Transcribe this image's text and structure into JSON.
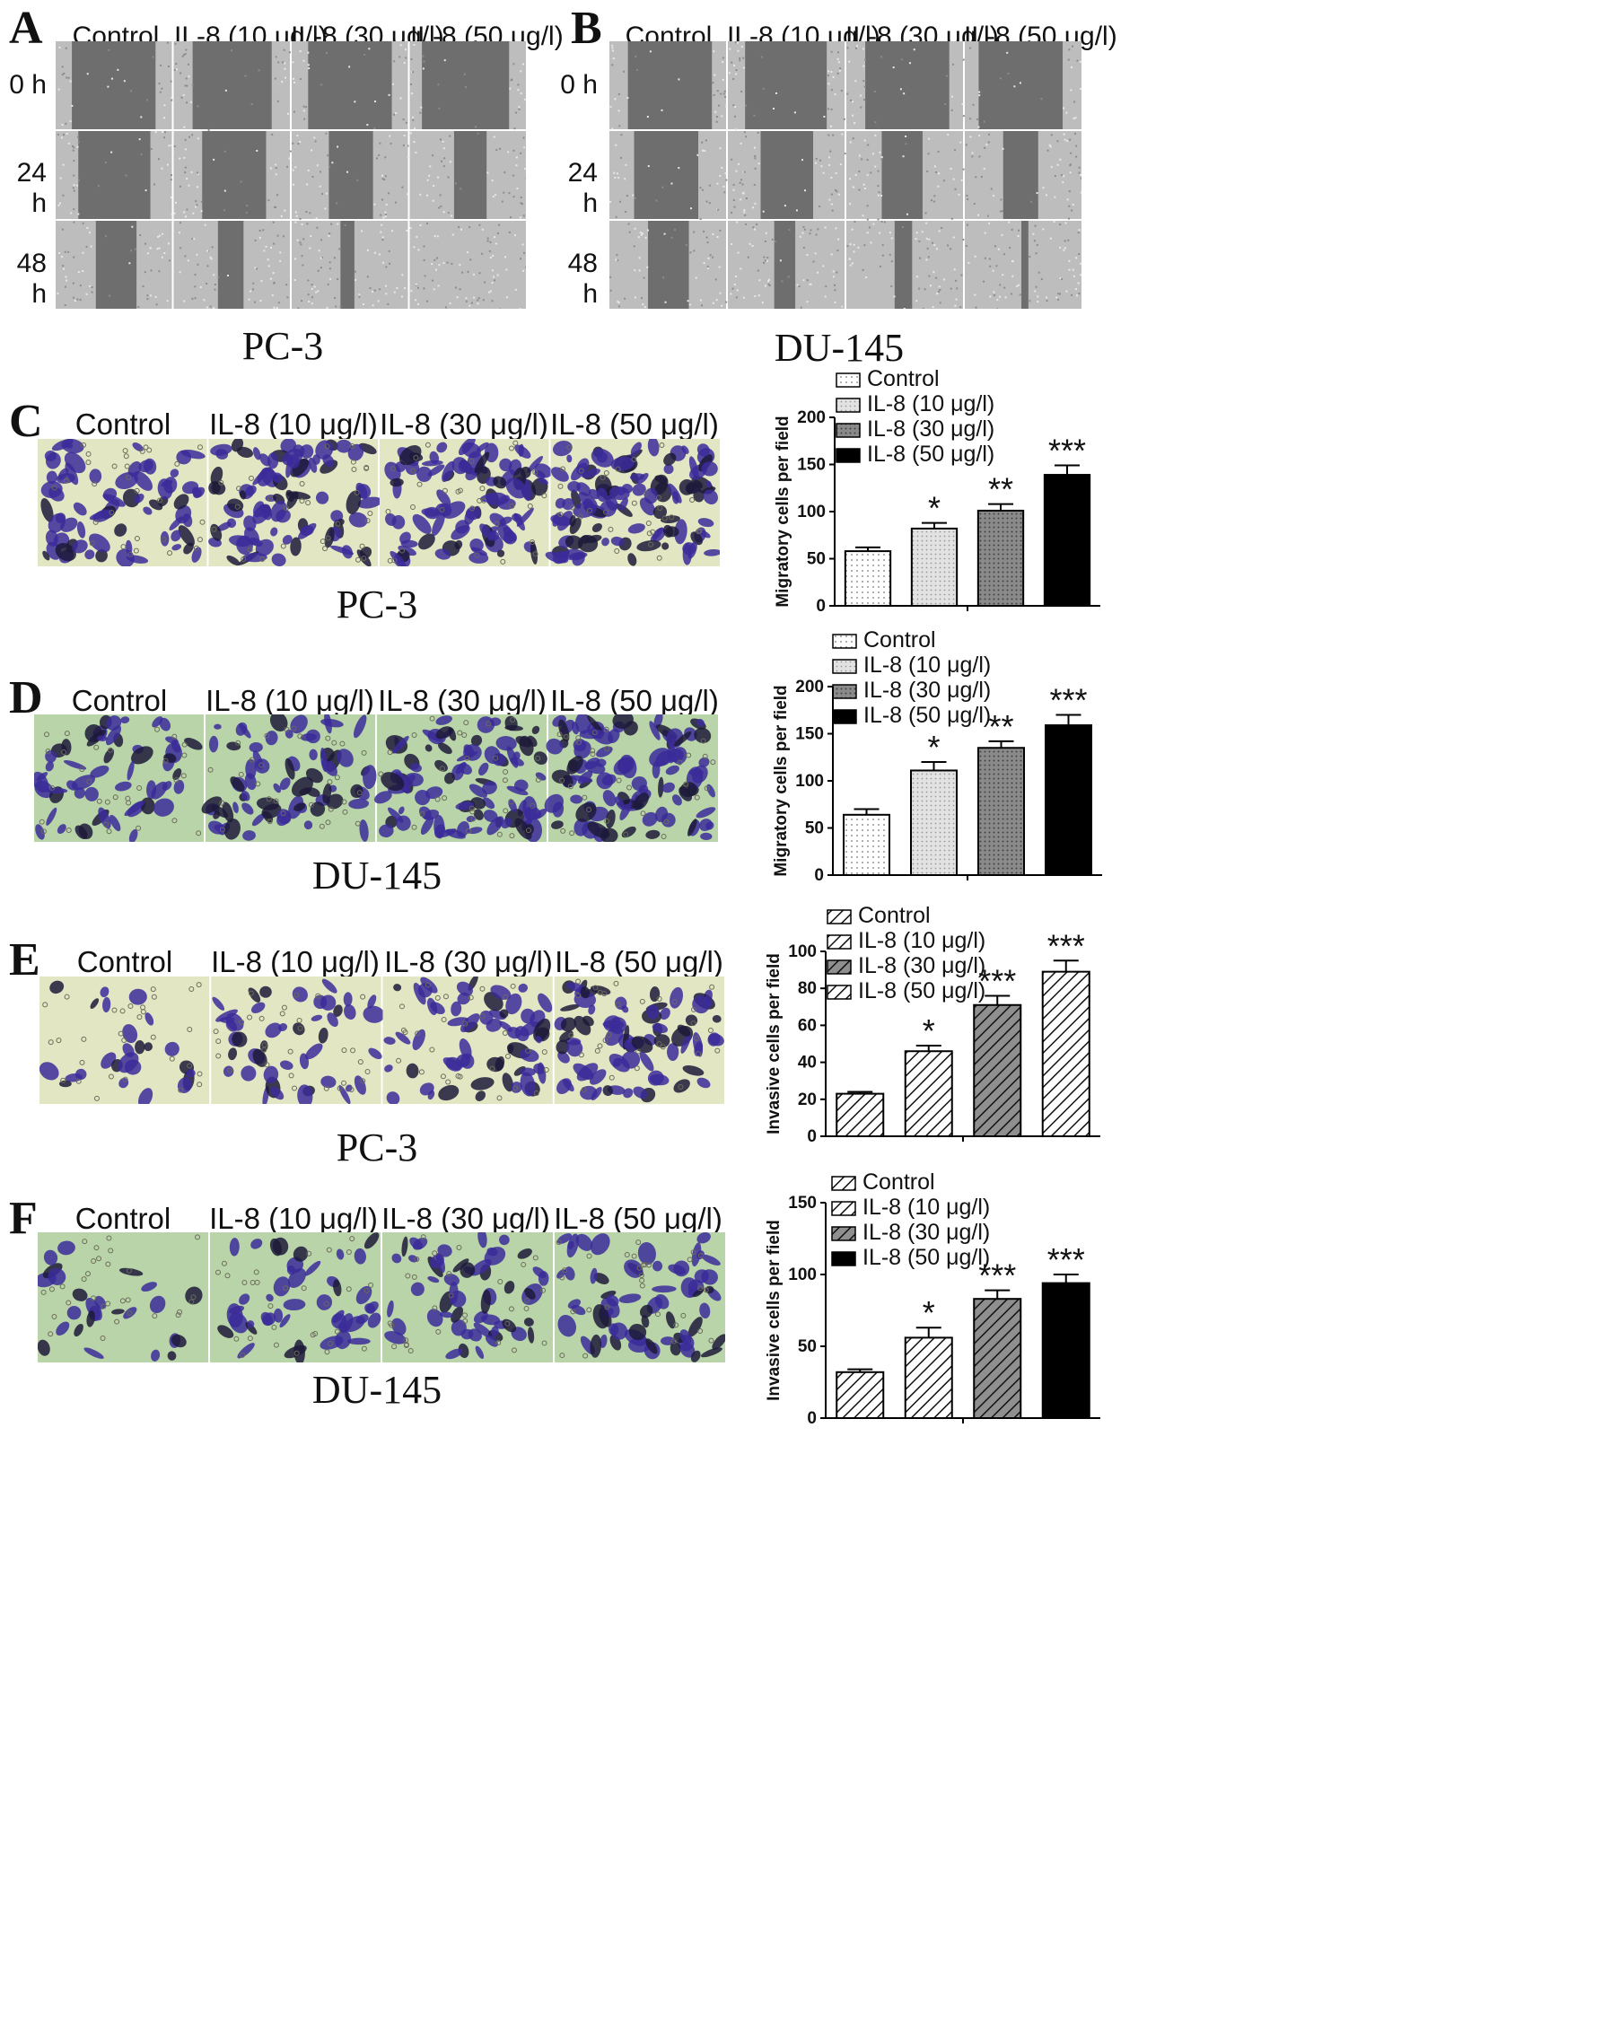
{
  "conditions": [
    "Control",
    "IL-8 (10 μg/l)",
    "IL-8 (30 μg/l)",
    "IL-8 (50 μg/l)"
  ],
  "timepoints": [
    "0 h",
    "24 h",
    "48 h"
  ],
  "panels": {
    "A": {
      "letter": "A",
      "cell_line": "PC-3"
    },
    "B": {
      "letter": "B",
      "cell_line": "DU-145"
    },
    "C": {
      "letter": "C",
      "cell_line": "PC-3"
    },
    "D": {
      "letter": "D",
      "cell_line": "DU-145"
    },
    "E": {
      "letter": "E",
      "cell_line": "PC-3"
    },
    "F": {
      "letter": "F",
      "cell_line": "DU-145"
    }
  },
  "colors": {
    "scratch_bg": "#6e6e6e",
    "scratch_cells": "#bdbdbd",
    "transwell_pc3_bg": "#e2e6c2",
    "transwell_du145_bg": "#b9d4a8",
    "stain": "#3b2b9a",
    "bar_control": "#ffffff",
    "bar_10": "#e0e0e0",
    "bar_30": "#8a8a8a",
    "bar_50": "#000000"
  },
  "chart_data": [
    {
      "panel": "C",
      "type": "bar",
      "ylabel": "Migratory cells per field",
      "ylim": [
        0,
        200
      ],
      "yticks": [
        0,
        50,
        100,
        150,
        200
      ],
      "legend_position": "top",
      "categories": [
        "Control",
        "IL-8 (10 μg/l)",
        "IL-8 (30 μg/l)",
        "IL-8 (50 μg/l)"
      ],
      "values": [
        58,
        82,
        101,
        139
      ],
      "errors": [
        4,
        6,
        7,
        10
      ],
      "significance": [
        "",
        "*",
        "**",
        "***"
      ],
      "fills": [
        "dots",
        "dots-light",
        "dots-dark",
        "solid"
      ]
    },
    {
      "panel": "D",
      "type": "bar",
      "ylabel": "Migratory cells per field",
      "ylim": [
        0,
        200
      ],
      "yticks": [
        0,
        50,
        100,
        150,
        200
      ],
      "legend_position": "top",
      "categories": [
        "Control",
        "IL-8 (10 μg/l)",
        "IL-8 (30 μg/l)",
        "IL-8 (50 μg/l)"
      ],
      "values": [
        64,
        111,
        135,
        159
      ],
      "errors": [
        6,
        9,
        7,
        11
      ],
      "significance": [
        "",
        "*",
        "**",
        "***"
      ],
      "fills": [
        "dots",
        "dots-light",
        "dots-dark",
        "solid"
      ]
    },
    {
      "panel": "E",
      "type": "bar",
      "ylabel": "Invasive cells per field",
      "ylim": [
        0,
        100
      ],
      "yticks": [
        0,
        20,
        40,
        60,
        80,
        100
      ],
      "legend_position": "top",
      "categories": [
        "Control",
        "IL-8 (10 μg/l)",
        "IL-8 (30 μg/l)",
        "IL-8 (50 μg/l)"
      ],
      "values": [
        23,
        46,
        71,
        89
      ],
      "errors": [
        1,
        3,
        5,
        6
      ],
      "significance": [
        "",
        "*",
        "***",
        "***"
      ],
      "fills": [
        "hatch",
        "hatch",
        "hatch-dark",
        "hatch"
      ]
    },
    {
      "panel": "F",
      "type": "bar",
      "ylabel": "Invasive cells per field",
      "ylim": [
        0,
        150
      ],
      "yticks": [
        0,
        50,
        100,
        150
      ],
      "legend_position": "top",
      "categories": [
        "Control",
        "IL-8 (10 μg/l)",
        "IL-8 (30 μg/l)",
        "IL-8 (50 μg/l)"
      ],
      "values": [
        32,
        56,
        83,
        94
      ],
      "errors": [
        2,
        7,
        6,
        6
      ],
      "significance": [
        "",
        "*",
        "***",
        "***"
      ],
      "fills": [
        "hatch",
        "hatch",
        "hatch-dark",
        "solid"
      ]
    }
  ]
}
